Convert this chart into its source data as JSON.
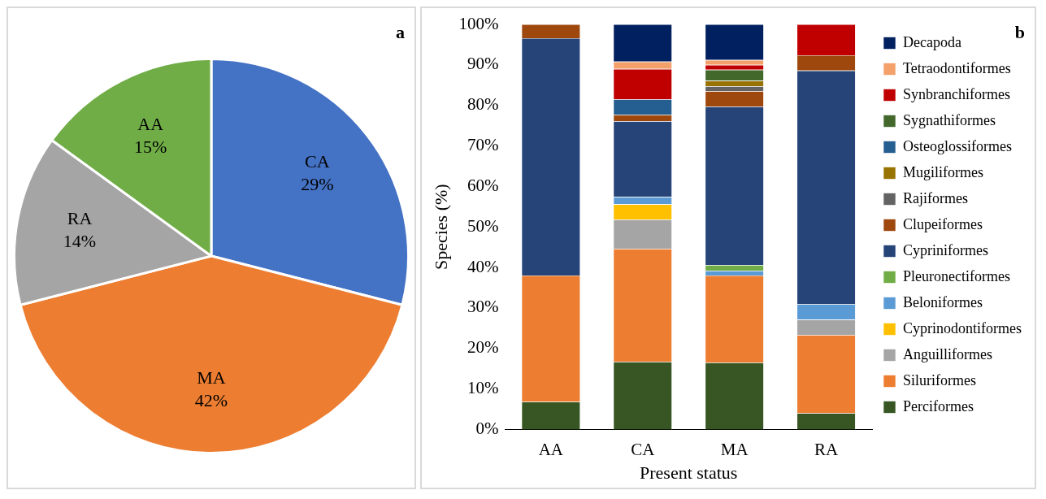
{
  "chart_data": [
    {
      "type": "pie",
      "categories": [
        "CA",
        "MA",
        "RA",
        "AA"
      ],
      "values": [
        29,
        42,
        14,
        15
      ],
      "colors": [
        "#4472c4",
        "#ed7d31",
        "#a5a5a5",
        "#70ad47"
      ],
      "value_labels": [
        "29%",
        "42%",
        "14%",
        "15%"
      ],
      "annotations": [
        "a"
      ],
      "legend": false
    },
    {
      "type": "bar",
      "stacked": true,
      "categories": [
        "AA",
        "CA",
        "MA",
        "RA"
      ],
      "xlabel": "Present status",
      "ylabel": "Species (%)",
      "annotations": [
        "b"
      ],
      "legend": "right",
      "grid": false,
      "ylim": [
        0,
        100
      ],
      "yticks": [
        {
          "value": 0,
          "label": "0%"
        },
        {
          "value": 10,
          "label": "10%"
        },
        {
          "value": 20,
          "label": "20%"
        },
        {
          "value": 30,
          "label": "30%"
        },
        {
          "value": 40,
          "label": "40%"
        },
        {
          "value": 50,
          "label": "50%"
        },
        {
          "value": 60,
          "label": "60%"
        },
        {
          "value": 70,
          "label": "70%"
        },
        {
          "value": 80,
          "label": "80%"
        },
        {
          "value": 90,
          "label": "90%"
        },
        {
          "value": 100,
          "label": "100%"
        }
      ],
      "series": [
        {
          "name": "Perciformes",
          "color": "#375623",
          "values": [
            6.8,
            16.7,
            16.5,
            4.0
          ]
        },
        {
          "name": "Siluriformes",
          "color": "#ed7d31",
          "values": [
            31.2,
            27.9,
            21.5,
            19.3
          ]
        },
        {
          "name": "Anguilliformes",
          "color": "#a5a5a5",
          "values": [
            null,
            7.2,
            null,
            3.8
          ]
        },
        {
          "name": "Cyprinodontiformes",
          "color": "#ffc000",
          "values": [
            null,
            3.8,
            null,
            null
          ]
        },
        {
          "name": "Beloniformes",
          "color": "#5b9bd5",
          "values": [
            null,
            1.8,
            1.2,
            3.8
          ]
        },
        {
          "name": "Pleuronectiformes",
          "color": "#70ad47",
          "values": [
            null,
            null,
            1.4,
            null
          ]
        },
        {
          "name": "Cypriniformes",
          "color": "#264478",
          "values": [
            58.6,
            18.7,
            39.1,
            57.7
          ]
        },
        {
          "name": "Clupeiformes",
          "color": "#9e480e",
          "values": [
            3.4,
            1.6,
            3.8,
            3.8
          ]
        },
        {
          "name": "Rajiformes",
          "color": "#636363",
          "values": [
            null,
            null,
            1.2,
            null
          ]
        },
        {
          "name": "Mugiliformes",
          "color": "#997300",
          "values": [
            null,
            null,
            1.4,
            null
          ]
        },
        {
          "name": "Osteoglossiformes",
          "color": "#255e91",
          "values": [
            null,
            3.8,
            null,
            null
          ]
        },
        {
          "name": "Sygnathiformes",
          "color": "#43682b",
          "values": [
            null,
            null,
            2.7,
            null
          ]
        },
        {
          "name": "Synbranchiformes",
          "color": "#c00000",
          "values": [
            null,
            7.5,
            1.2,
            7.6
          ]
        },
        {
          "name": "Tetraodontiformes",
          "color": "#f4a06a",
          "values": [
            null,
            1.8,
            1.2,
            null
          ]
        },
        {
          "name": "Decapoda",
          "color": "#002060",
          "values": [
            null,
            9.2,
            8.8,
            null
          ]
        }
      ]
    }
  ]
}
